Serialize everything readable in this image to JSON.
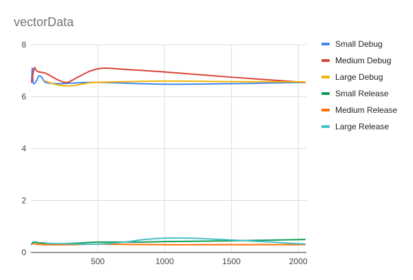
{
  "chart_data": {
    "type": "line",
    "title": "vectorData",
    "xlabel": "",
    "ylabel": "",
    "xlim": [
      0,
      2060
    ],
    "ylim": [
      0,
      8
    ],
    "xticks": [
      500,
      1000,
      1500,
      2000
    ],
    "yticks": [
      0,
      2,
      4,
      6,
      8
    ],
    "grid": true,
    "legend_position": "right",
    "series": [
      {
        "name": "Small Debug",
        "color": "#4285f4",
        "points": [
          [
            5,
            6.6
          ],
          [
            10,
            7.1
          ],
          [
            15,
            6.6
          ],
          [
            25,
            6.5
          ],
          [
            45,
            6.65
          ],
          [
            60,
            6.8
          ],
          [
            80,
            6.75
          ],
          [
            110,
            6.55
          ],
          [
            200,
            6.5
          ],
          [
            300,
            6.52
          ],
          [
            500,
            6.55
          ],
          [
            1000,
            6.48
          ],
          [
            1500,
            6.5
          ],
          [
            2050,
            6.55
          ]
        ]
      },
      {
        "name": "Medium Debug",
        "color": "#db4437",
        "points": [
          [
            5,
            6.55
          ],
          [
            25,
            7.1
          ],
          [
            40,
            7.0
          ],
          [
            60,
            6.95
          ],
          [
            110,
            6.9
          ],
          [
            200,
            6.65
          ],
          [
            270,
            6.55
          ],
          [
            350,
            6.75
          ],
          [
            450,
            7.0
          ],
          [
            550,
            7.1
          ],
          [
            700,
            7.05
          ],
          [
            1000,
            6.95
          ],
          [
            1500,
            6.75
          ],
          [
            2050,
            6.55
          ]
        ]
      },
      {
        "name": "Large Debug",
        "color": "#f4b400",
        "points": [
          [
            110,
            6.6
          ],
          [
            200,
            6.45
          ],
          [
            300,
            6.42
          ],
          [
            400,
            6.5
          ],
          [
            500,
            6.55
          ],
          [
            1000,
            6.6
          ],
          [
            1500,
            6.58
          ],
          [
            2050,
            6.57
          ]
        ]
      },
      {
        "name": "Small Release",
        "color": "#0f9d58",
        "points": [
          [
            5,
            0.32
          ],
          [
            20,
            0.4
          ],
          [
            50,
            0.38
          ],
          [
            100,
            0.36
          ],
          [
            200,
            0.33
          ],
          [
            350,
            0.36
          ],
          [
            500,
            0.4
          ],
          [
            800,
            0.4
          ],
          [
            1000,
            0.42
          ],
          [
            1500,
            0.45
          ],
          [
            2050,
            0.5
          ]
        ]
      },
      {
        "name": "Medium Release",
        "color": "#ff6d01",
        "points": [
          [
            20,
            0.33
          ],
          [
            100,
            0.3
          ],
          [
            300,
            0.3
          ],
          [
            500,
            0.32
          ],
          [
            1000,
            0.3
          ],
          [
            1500,
            0.3
          ],
          [
            2050,
            0.3
          ]
        ]
      },
      {
        "name": "Large Release",
        "color": "#46bdc6",
        "points": [
          [
            110,
            0.35
          ],
          [
            300,
            0.33
          ],
          [
            500,
            0.32
          ],
          [
            700,
            0.4
          ],
          [
            850,
            0.5
          ],
          [
            1000,
            0.55
          ],
          [
            1200,
            0.55
          ],
          [
            1500,
            0.48
          ],
          [
            1800,
            0.4
          ],
          [
            2050,
            0.32
          ]
        ]
      }
    ]
  }
}
